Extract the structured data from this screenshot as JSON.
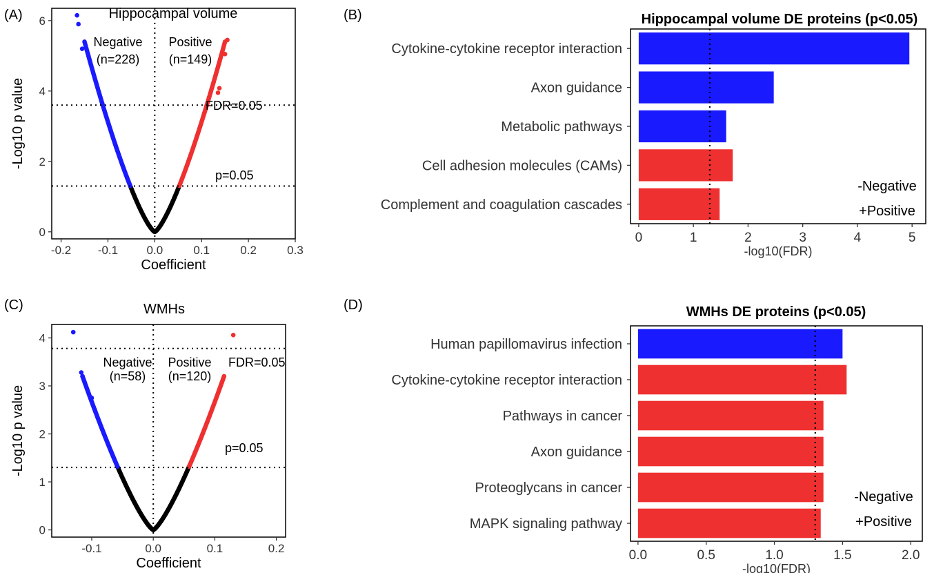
{
  "colors": {
    "negative": "#1a1aff",
    "positive": "#ef3030",
    "ns": "#000000"
  },
  "chart_data": [
    {
      "id": "A",
      "panel_label": "(A)",
      "type": "scatter",
      "title": "Hippocampal volume",
      "xlabel": "Coefficient",
      "ylabel": "-Log10 p value",
      "xlim": [
        -0.22,
        0.3
      ],
      "ylim": [
        -0.2,
        6.35
      ],
      "xticks": [
        -0.2,
        -0.1,
        0.0,
        0.1,
        0.2,
        0.3
      ],
      "xtick_labels": [
        "-0.2",
        "-0.1",
        "0.0",
        "0.1",
        "0.2",
        "0.3"
      ],
      "yticks": [
        0,
        2,
        4,
        6
      ],
      "ytick_labels": [
        "0",
        "2",
        "4",
        "6"
      ],
      "v_line": 0,
      "h_lines": [
        {
          "y": 3.6,
          "label": "FDR=0.05"
        },
        {
          "y": 1.3,
          "label": "p=0.05"
        }
      ],
      "groups": [
        {
          "name": "Negative",
          "count": "(n=228)"
        },
        {
          "name": "Positive",
          "count": "(n=149)"
        }
      ],
      "curve": {
        "max_abs_x": 0.15,
        "max_y": 5.4,
        "exponent": 1.35
      },
      "outliers": [
        {
          "x": -0.166,
          "y": 6.15,
          "group": "neg"
        },
        {
          "x": -0.163,
          "y": 5.9,
          "group": "neg"
        },
        {
          "x": -0.155,
          "y": 5.2,
          "group": "neg"
        },
        {
          "x": 0.155,
          "y": 5.45,
          "group": "pos"
        },
        {
          "x": 0.15,
          "y": 5.05,
          "group": "pos"
        },
        {
          "x": 0.138,
          "y": 4.08,
          "group": "pos"
        },
        {
          "x": 0.135,
          "y": 3.95,
          "group": "pos"
        }
      ]
    },
    {
      "id": "B",
      "panel_label": "(B)",
      "type": "bar",
      "orientation": "horizontal",
      "title": "Hippocampal volume DE proteins (p<0.05)",
      "xlabel": "-log10(FDR)",
      "categories": [
        "Cytokine-cytokine receptor interaction",
        "Axon guidance",
        "Metabolic pathways",
        "Cell adhesion molecules (CAMs)",
        "Complement and coagulation cascades"
      ],
      "values": [
        4.95,
        2.47,
        1.6,
        1.72,
        1.48
      ],
      "directions": [
        "neg",
        "neg",
        "neg",
        "pos",
        "pos"
      ],
      "xlim": [
        -0.15,
        5.25
      ],
      "xticks": [
        0,
        1,
        2,
        3,
        4,
        5
      ],
      "xtick_labels": [
        "0",
        "1",
        "2",
        "3",
        "4",
        "5"
      ],
      "threshold": 1.3,
      "legend": [
        "-Negative",
        "+Positive"
      ]
    },
    {
      "id": "C",
      "panel_label": "(C)",
      "type": "scatter",
      "title": "WMHs",
      "xlabel": "Coefficient",
      "ylabel": "-Log10 p value",
      "xlim": [
        -0.165,
        0.215
      ],
      "ylim": [
        -0.15,
        4.28
      ],
      "xticks": [
        -0.1,
        0.0,
        0.1,
        0.2
      ],
      "xtick_labels": [
        "-0.1",
        "0.0",
        "0.1",
        "0.2"
      ],
      "yticks": [
        0,
        1,
        2,
        3,
        4
      ],
      "ytick_labels": [
        "0",
        "1",
        "2",
        "3",
        "4"
      ],
      "v_line": 0,
      "h_lines": [
        {
          "y": 3.78,
          "label": "FDR=0.05"
        },
        {
          "y": 1.3,
          "label": "p=0.05"
        }
      ],
      "groups": [
        {
          "name": "Negative",
          "count": "(n=58)"
        },
        {
          "name": "Positive",
          "count": "(n=120)"
        }
      ],
      "curve": {
        "max_abs_x": 0.115,
        "max_y": 3.2,
        "exponent": 1.3
      },
      "outliers": [
        {
          "x": -0.13,
          "y": 4.12,
          "group": "neg"
        },
        {
          "x": -0.117,
          "y": 3.28,
          "group": "neg"
        },
        {
          "x": -0.115,
          "y": 3.2,
          "group": "neg"
        },
        {
          "x": -0.1,
          "y": 2.75,
          "group": "neg"
        },
        {
          "x": -0.095,
          "y": 2.5,
          "group": "neg"
        },
        {
          "x": 0.13,
          "y": 4.06,
          "group": "pos"
        }
      ]
    },
    {
      "id": "D",
      "panel_label": "(D)",
      "type": "bar",
      "orientation": "horizontal",
      "title": "WMHs DE proteins (p<0.05)",
      "xlabel": "-log10(FDR)",
      "categories": [
        "Human papillomavirus infection",
        "Cytokine-cytokine receptor interaction",
        "Pathways in cancer",
        "Axon guidance",
        "Proteoglycans in cancer",
        "MAPK signaling pathway"
      ],
      "values": [
        1.5,
        1.53,
        1.36,
        1.36,
        1.36,
        1.34
      ],
      "directions": [
        "neg",
        "pos",
        "pos",
        "pos",
        "pos",
        "pos"
      ],
      "xlim": [
        -0.055,
        2.085
      ],
      "xticks": [
        0.0,
        0.5,
        1.0,
        1.5,
        2.0
      ],
      "xtick_labels": [
        "0.0",
        "0.5",
        "1.0",
        "1.5",
        "2.0"
      ],
      "threshold": 1.3,
      "legend": [
        "-Negative",
        "+Positive"
      ]
    }
  ]
}
